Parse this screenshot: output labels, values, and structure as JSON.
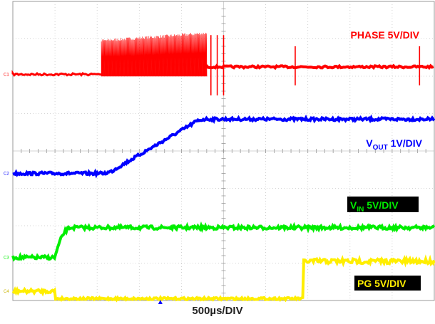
{
  "chart_data": {
    "type": "line",
    "xlabel": "500µs/DIV",
    "x_divisions": 10,
    "y_divisions": 8,
    "grid": true,
    "channel_markers": [
      "C1",
      "C2",
      "C3",
      "C4"
    ],
    "series": [
      {
        "name": "PHASE 5V/DIV",
        "color": "#ff0000",
        "label_style": "red-text",
        "baseline_div": 6.05,
        "switching_start_time_div": 2.1,
        "switching_end_time_div": 4.6,
        "switching_high_div": 7.1,
        "switching_low_div": 6.0,
        "steady_div": 6.25,
        "spikes_time_div": [
          4.7,
          4.85,
          5.0,
          6.7,
          9.65
        ]
      },
      {
        "name_main": "V",
        "name_sub": "OUT",
        "name_rest": " 1V/DIV",
        "color": "#0000ff",
        "label_style": "blue-text",
        "baseline_div": 3.4,
        "ramp_start_time_div": 2.1,
        "ramp_end_time_div": 4.6,
        "final_div": 4.85
      },
      {
        "name_main": "V",
        "name_sub": "IN",
        "name_rest": " 5V/DIV",
        "color": "#00ee00",
        "label_style": "green-on-black",
        "baseline_div": 1.15,
        "rise_start_time_div": 1.0,
        "rise_end_time_div": 1.4,
        "final_div": 1.95
      },
      {
        "name": "PG 5V/DIV",
        "color": "#ffee00",
        "label_style": "yellow-on-black",
        "baseline_div": 0.25,
        "drop_time_div": 1.0,
        "low_div": 0.05,
        "rise_time_div": 6.9,
        "final_div": 1.05
      }
    ],
    "trigger_marker_time_div": 3.5
  }
}
